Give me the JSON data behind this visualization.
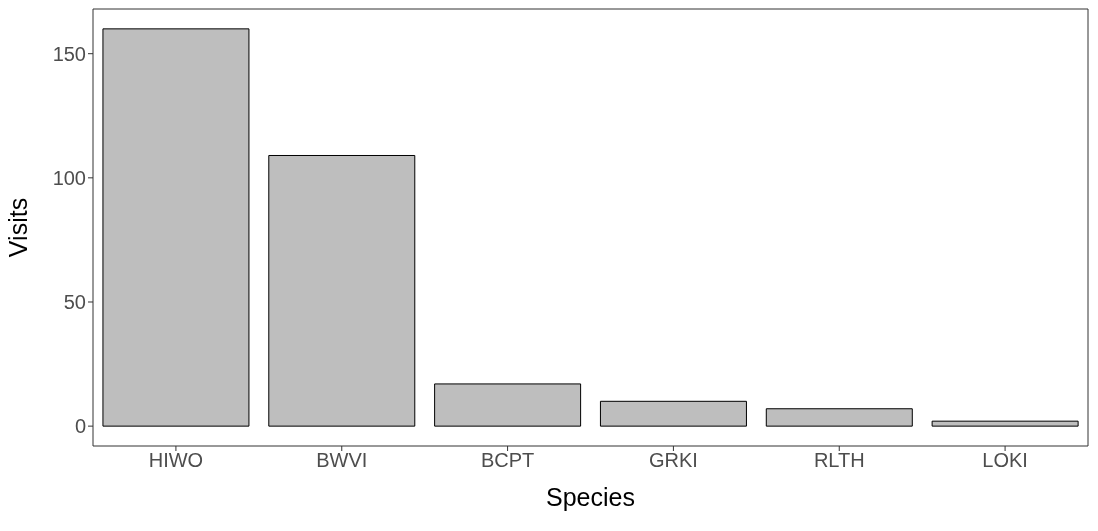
{
  "chart_data": {
    "type": "bar",
    "xlabel": "Species",
    "ylabel": "Visits",
    "categories": [
      "HIWO",
      "BWVI",
      "BCPT",
      "GRKI",
      "RLTH",
      "LOKI"
    ],
    "values": [
      160,
      109,
      17,
      10,
      7,
      2
    ],
    "color": "#bebebe",
    "ylim": [
      -8,
      168
    ],
    "yticks": [
      0,
      50,
      100,
      150
    ],
    "grid": false,
    "legend": false
  }
}
